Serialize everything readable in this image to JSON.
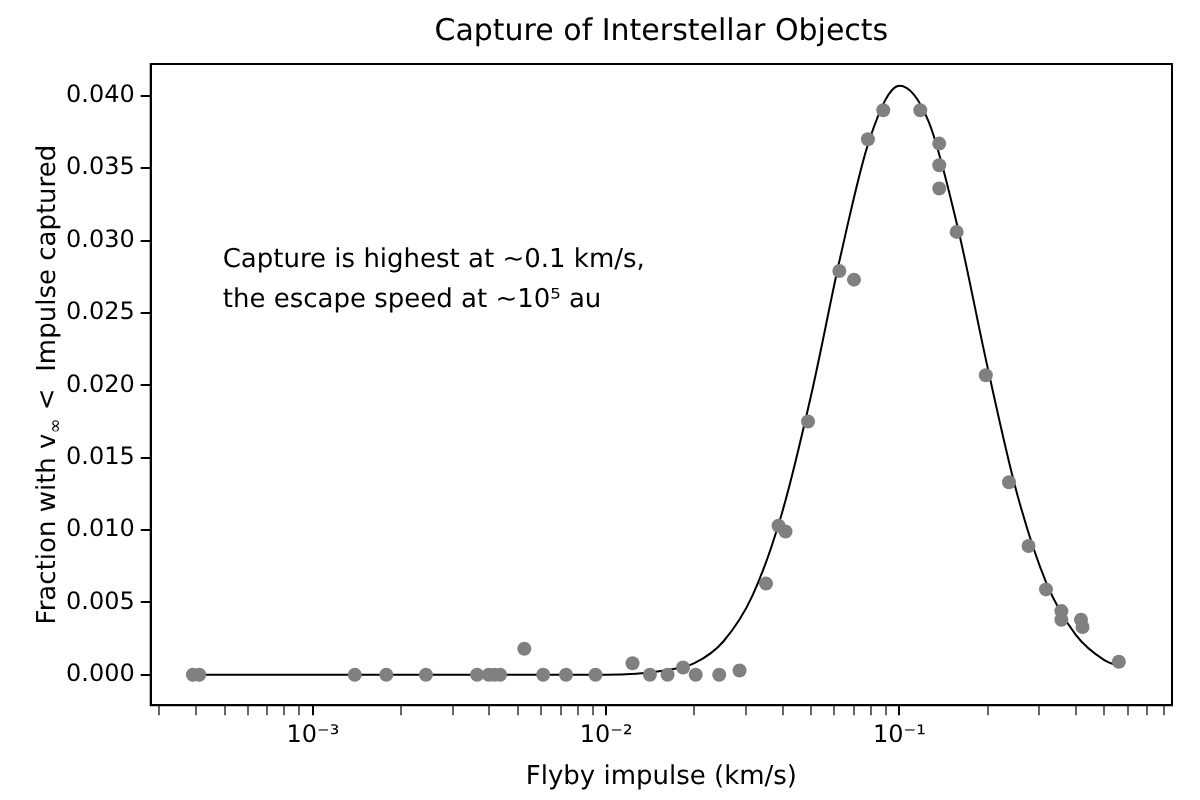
{
  "chart_data": {
    "type": "scatter",
    "title": "Capture of Interstellar Objects",
    "xlabel": "Flyby impulse (km/s)",
    "ylabel": "Fraction with v$_{∞}$ <  Impulse captured",
    "annotations": [
      "Capture is highest at ~0.1 km/s,",
      "the escape speed at ~10⁵ au"
    ],
    "log": "x",
    "grid": false,
    "marker": "circle",
    "xlim": [
      0.00028,
      0.85
    ],
    "ylim": [
      -0.0021,
      0.0422
    ],
    "xticks": [
      {
        "value": 0.0003,
        "label": null
      },
      {
        "value": 0.0004,
        "label": null
      },
      {
        "value": 0.0005,
        "label": null
      },
      {
        "value": 0.0006,
        "label": null
      },
      {
        "value": 0.0007,
        "label": null
      },
      {
        "value": 0.0008,
        "label": null
      },
      {
        "value": 0.0009,
        "label": null
      },
      {
        "value": 0.001,
        "label": "10⁻³"
      },
      {
        "value": 0.002,
        "label": null
      },
      {
        "value": 0.003,
        "label": null
      },
      {
        "value": 0.004,
        "label": null
      },
      {
        "value": 0.005,
        "label": null
      },
      {
        "value": 0.006,
        "label": null
      },
      {
        "value": 0.007,
        "label": null
      },
      {
        "value": 0.008,
        "label": null
      },
      {
        "value": 0.009,
        "label": null
      },
      {
        "value": 0.01,
        "label": "10⁻²"
      },
      {
        "value": 0.02,
        "label": null
      },
      {
        "value": 0.03,
        "label": null
      },
      {
        "value": 0.04,
        "label": null
      },
      {
        "value": 0.05,
        "label": null
      },
      {
        "value": 0.06,
        "label": null
      },
      {
        "value": 0.07,
        "label": null
      },
      {
        "value": 0.08,
        "label": null
      },
      {
        "value": 0.09,
        "label": null
      },
      {
        "value": 0.1,
        "label": "10⁻¹"
      },
      {
        "value": 0.2,
        "label": null
      },
      {
        "value": 0.3,
        "label": null
      },
      {
        "value": 0.4,
        "label": null
      },
      {
        "value": 0.5,
        "label": null
      },
      {
        "value": 0.6,
        "label": null
      },
      {
        "value": 0.7,
        "label": null
      },
      {
        "value": 0.8,
        "label": null
      }
    ],
    "yticks": [
      {
        "value": 0,
        "label": "0.000"
      },
      {
        "value": 0.005,
        "label": "0.005"
      },
      {
        "value": 0.01,
        "label": "0.010"
      },
      {
        "value": 0.015,
        "label": "0.015"
      },
      {
        "value": 0.02,
        "label": "0.020"
      },
      {
        "value": 0.025,
        "label": "0.025"
      },
      {
        "value": 0.03,
        "label": "0.030"
      },
      {
        "value": 0.035,
        "label": "0.035"
      },
      {
        "value": 0.04,
        "label": "0.040"
      }
    ],
    "series": [
      {
        "type": "line",
        "color": "#000000",
        "marker": "none",
        "x": [
          0.000398,
          0.01,
          0.0158,
          0.02,
          0.0251,
          0.0316,
          0.0398,
          0.0501,
          0.0631,
          0.0794,
          0.1,
          0.1259,
          0.1585,
          0.1995,
          0.2512,
          0.3162,
          0.3981,
          0.5012,
          0.5623
        ],
        "values": [
          0,
          0,
          0.0003,
          0.0008,
          0.0023,
          0.0055,
          0.0112,
          0.0194,
          0.029,
          0.0371,
          0.0407,
          0.0382,
          0.0308,
          0.0213,
          0.0126,
          0.0064,
          0.0028,
          0.001,
          0.0006
        ]
      },
      {
        "type": "scatter",
        "color": "#808080",
        "x": [
          0.00039,
          0.00041,
          0.00139,
          0.00178,
          0.00243,
          0.00363,
          0.00398,
          0.00416,
          0.00435,
          0.00526,
          0.0061,
          0.0073,
          0.0092,
          0.0123,
          0.0141,
          0.0162,
          0.0183,
          0.0202,
          0.0243,
          0.0285,
          0.0351,
          0.0387,
          0.0409,
          0.0488,
          0.0624,
          0.07,
          0.0781,
          0.0881,
          0.1178,
          0.1367,
          0.1367,
          0.1367,
          0.1567,
          0.197,
          0.2364,
          0.2756,
          0.316,
          0.3566,
          0.3566,
          0.398,
          0.416,
          0.421,
          0.56
        ],
        "values": [
          0,
          0,
          0,
          0,
          0,
          0,
          0,
          0,
          0,
          0.0018,
          0,
          0,
          0,
          0.0008,
          0,
          0,
          0.0005,
          0,
          0,
          0.0003,
          0.0063,
          0.0103,
          0.0099,
          0.0175,
          0.0279,
          0.0273,
          0.037,
          0.039,
          0.039,
          0.0367,
          0.0352,
          0.0336,
          0.0306,
          0.0207,
          0.0133,
          0.0089,
          0.0059,
          0.0044,
          0.0038,
          null,
          0.0038,
          0.0033,
          0.0009
        ]
      }
    ]
  }
}
